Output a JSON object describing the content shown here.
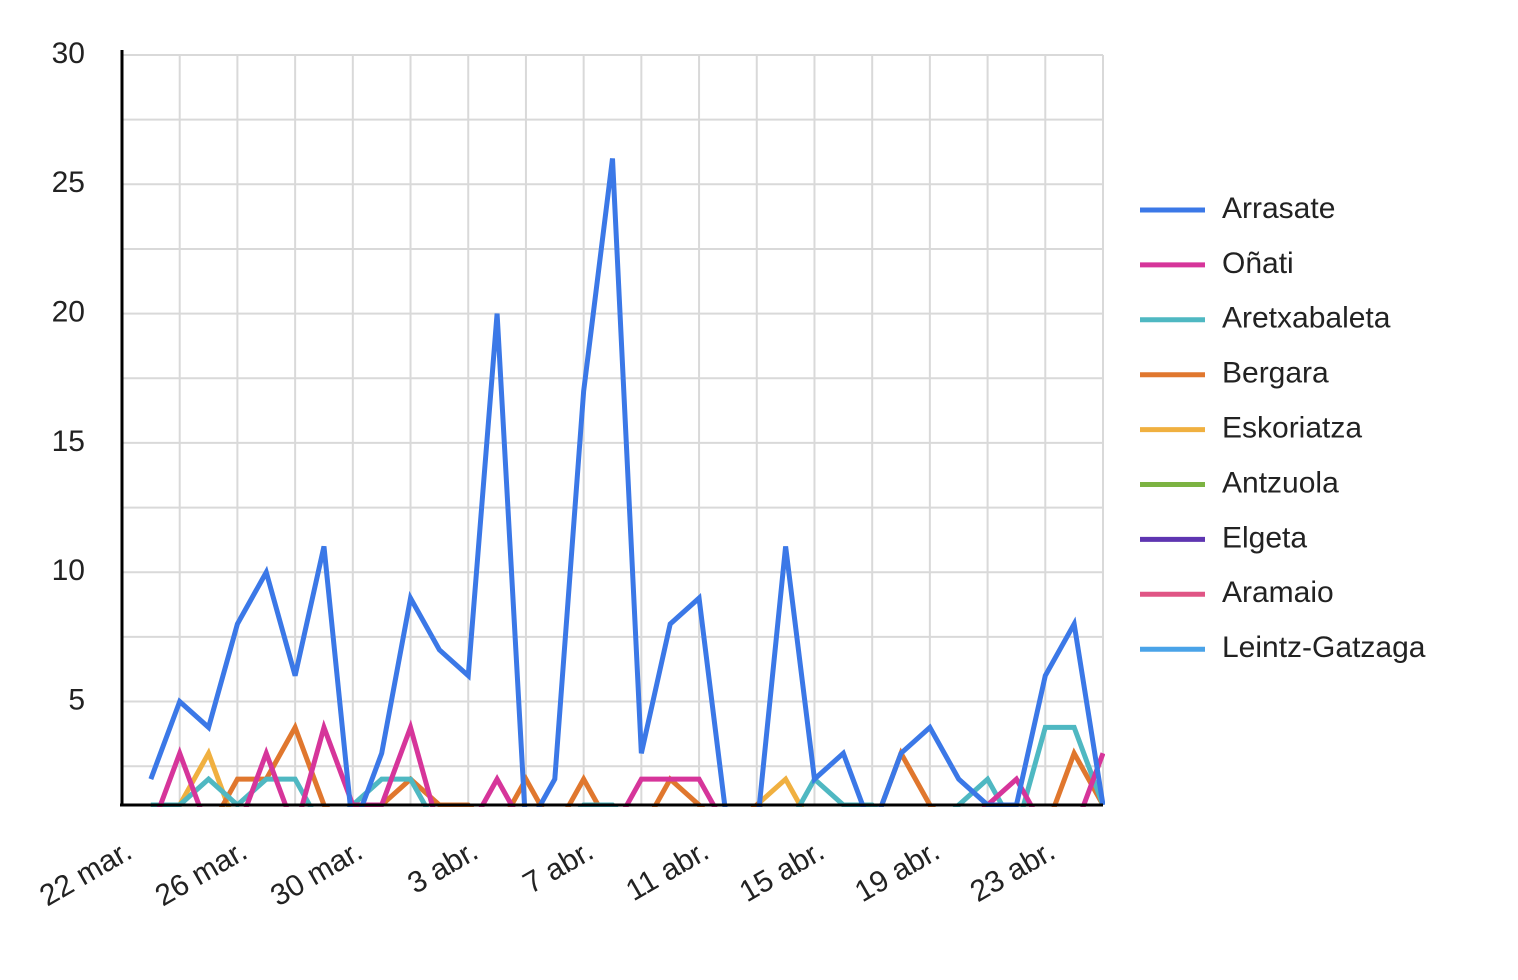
{
  "chart_data": {
    "type": "line",
    "x": [
      "22 mar.",
      null,
      null,
      null,
      "26 mar.",
      null,
      null,
      null,
      "30 mar.",
      null,
      null,
      null,
      "3 abr.",
      null,
      null,
      null,
      "7 abr.",
      null,
      null,
      null,
      "11 abr.",
      null,
      null,
      null,
      "15 abr.",
      null,
      null,
      null,
      "19 abr.",
      null,
      null,
      null,
      "23 abr.",
      null,
      null
    ],
    "series": [
      {
        "name": "Arrasate",
        "color": "#3b78e7",
        "values": [
          null,
          2,
          5,
          4,
          8,
          10,
          6,
          11,
          0,
          3,
          9,
          7,
          6,
          20,
          0,
          2,
          17,
          26,
          3,
          8,
          9,
          0,
          0,
          11,
          2,
          3,
          0,
          3,
          4,
          2,
          1,
          1,
          6,
          8,
          1
        ]
      },
      {
        "name": "Oñati",
        "color": "#d6359a",
        "values": [
          null,
          0,
          3,
          0,
          0,
          3,
          0,
          4,
          1,
          1,
          4,
          0,
          0,
          2,
          0,
          0,
          0,
          0,
          2,
          2,
          2,
          0,
          0,
          0,
          0,
          0,
          0,
          0,
          0,
          0,
          1,
          2,
          0,
          0,
          3
        ]
      },
      {
        "name": "Aretxabaleta",
        "color": "#4fb8c2",
        "values": [
          null,
          1,
          1,
          2,
          1,
          2,
          2,
          0,
          1,
          2,
          2,
          0,
          0,
          0,
          0,
          0,
          1,
          1,
          0,
          0,
          0,
          0,
          0,
          0,
          2,
          1,
          1,
          0,
          0,
          1,
          2,
          0,
          4,
          4,
          1
        ]
      },
      {
        "name": "Bergara",
        "color": "#e0772e",
        "values": [
          null,
          0,
          0,
          0,
          2,
          2,
          4,
          1,
          0,
          1,
          2,
          1,
          1,
          0,
          2,
          0,
          2,
          0,
          0,
          2,
          1,
          0,
          1,
          0,
          0,
          0,
          0,
          3,
          1,
          0,
          0,
          0,
          0,
          3,
          1
        ]
      },
      {
        "name": "Eskoriatza",
        "color": "#f0b040",
        "values": [
          null,
          1,
          1,
          3,
          0,
          0,
          0,
          0,
          0,
          0,
          0,
          0,
          0,
          0,
          0,
          0,
          0,
          0,
          0,
          0,
          0,
          0,
          1,
          2,
          0,
          0,
          0,
          0,
          0,
          0,
          0,
          0,
          0,
          0,
          0
        ]
      },
      {
        "name": "Antzuola",
        "color": "#7cb342",
        "values": [
          null,
          0,
          0,
          0,
          0,
          0,
          0,
          0,
          0,
          0,
          0,
          0,
          0,
          0,
          0,
          0,
          0,
          0,
          0,
          0,
          0,
          0,
          0,
          0,
          0,
          0,
          0,
          0,
          0,
          0,
          0,
          0,
          0,
          0,
          0
        ]
      },
      {
        "name": "Elgeta",
        "color": "#5e35b1",
        "values": [
          null,
          0,
          0,
          0,
          0,
          0,
          0,
          0,
          0,
          0,
          0,
          0,
          0,
          0,
          0,
          0,
          0,
          0,
          0,
          0,
          0,
          0,
          0,
          0,
          0,
          0,
          0,
          0,
          0,
          0,
          0,
          0,
          0,
          0,
          0
        ]
      },
      {
        "name": "Aramaio",
        "color": "#e05585",
        "values": [
          null,
          0,
          0,
          0,
          0,
          0,
          0,
          0,
          0,
          0,
          0,
          0,
          0,
          0,
          0,
          0,
          0,
          0,
          0,
          0,
          0,
          0,
          0,
          0,
          0,
          0,
          0,
          0,
          0,
          0,
          0,
          0,
          0,
          0,
          0
        ]
      },
      {
        "name": "Leintz-Gatzaga",
        "color": "#4aa3e8",
        "values": [
          null,
          0,
          0,
          0,
          0,
          0,
          0,
          0,
          0,
          0,
          0,
          0,
          0,
          0,
          0,
          0,
          0,
          0,
          0,
          0,
          0,
          0,
          0,
          0,
          0,
          0,
          0,
          0,
          0,
          0,
          0,
          0,
          0,
          0,
          0
        ]
      }
    ],
    "ylim": [
      1,
      30
    ],
    "yticks": [
      5,
      10,
      15,
      20,
      25,
      30
    ],
    "minor_yticks": [
      2.5,
      7.5,
      12.5,
      17.5,
      22.5,
      27.5
    ],
    "grid": true,
    "legend": "right"
  }
}
